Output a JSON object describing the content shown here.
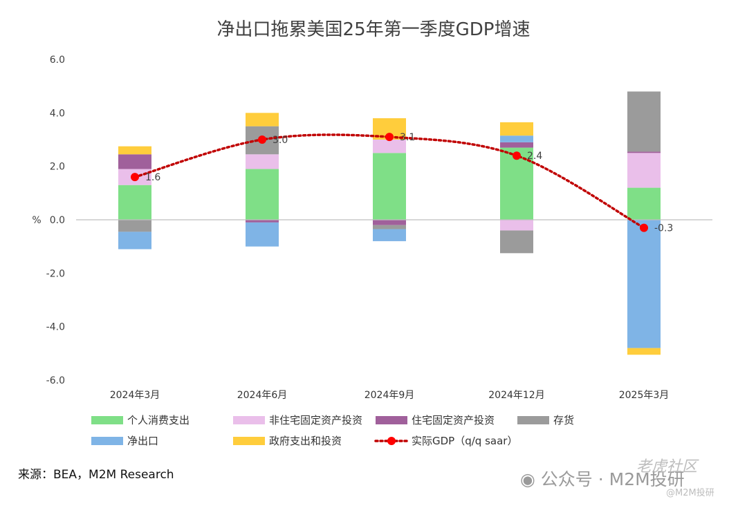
{
  "page": {
    "title": "净出口拖累美国25年第一季度GDP增速",
    "source": "来源：BEA，M2M Research",
    "watermark": "公众号 · M2M投研",
    "watermark_site": "老虎社区",
    "watermark_handle": "@M2M投研"
  },
  "chart_data": {
    "type": "bar",
    "stacked": true,
    "title": "净出口拖累美国25年第一季度GDP增速",
    "ylabel": "%",
    "ylim": [
      -6,
      6
    ],
    "yticks": [
      "6.0",
      "4.0",
      "2.0",
      "0.0",
      "-2.0",
      "-4.0",
      "-6.0"
    ],
    "categories": [
      "2024年3月",
      "2024年6月",
      "2024年9月",
      "2024年12月",
      "2025年3月"
    ],
    "series": [
      {
        "name": "个人消费支出",
        "color": "#7fdf87",
        "values": [
          1.3,
          1.9,
          2.5,
          2.7,
          1.2
        ]
      },
      {
        "name": "非住宅固定资产投资",
        "color": "#eabfea",
        "values": [
          0.6,
          0.55,
          0.5,
          -0.4,
          1.3
        ]
      },
      {
        "name": "住宅固定资产投资",
        "color": "#a0609b",
        "values": [
          0.55,
          -0.1,
          -0.2,
          0.2,
          0.05
        ]
      },
      {
        "name": "存货",
        "color": "#9b9b9b",
        "values": [
          -0.45,
          1.05,
          -0.15,
          -0.85,
          2.25
        ]
      },
      {
        "name": "净出口",
        "color": "#7fb4e6",
        "values": [
          -0.65,
          -0.9,
          -0.45,
          0.25,
          -4.8
        ]
      },
      {
        "name": "政府支出和投资",
        "color": "#ffcd3c",
        "values": [
          0.3,
          0.5,
          0.8,
          0.5,
          -0.25
        ]
      }
    ],
    "line": {
      "name": "实际GDP（q/q saar）",
      "color": "#c00000",
      "values": [
        1.6,
        3.0,
        3.1,
        2.4,
        -0.3
      ],
      "labels": [
        "1.6",
        "3.0",
        "3.1",
        "2.4",
        "-0.3"
      ]
    },
    "legend_position": "bottom",
    "grid": false
  }
}
